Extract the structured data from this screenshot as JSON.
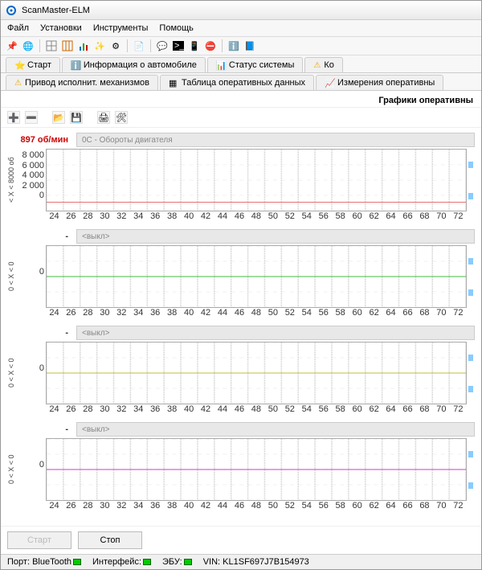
{
  "window": {
    "title": "ScanMaster-ELM"
  },
  "menu": {
    "items": [
      "Файл",
      "Установки",
      "Инструменты",
      "Помощь"
    ]
  },
  "tabs1": [
    {
      "icon": "fav",
      "label": "Старт"
    },
    {
      "icon": "info",
      "label": "Информация о автомобиле"
    },
    {
      "icon": "status",
      "label": "Статус системы"
    },
    {
      "icon": "warn",
      "label": "Ко"
    }
  ],
  "tabs2": [
    {
      "icon": "warn",
      "label": "Привод исполнит. механизмов"
    },
    {
      "icon": "table",
      "label": "Таблица оперативных данных"
    },
    {
      "icon": "chart",
      "label": "Измерения оперативны"
    }
  ],
  "page_title": "Графики оперативны",
  "xticks": [
    "24",
    "26",
    "28",
    "30",
    "32",
    "34",
    "36",
    "38",
    "40",
    "42",
    "44",
    "46",
    "48",
    "50",
    "52",
    "54",
    "56",
    "58",
    "60",
    "62",
    "64",
    "66",
    "68",
    "70",
    "72"
  ],
  "charts": [
    {
      "value": "897 об/мин",
      "value_color": "#c00",
      "selector": "0C - Обороты двигателя",
      "ylabel": "< X < 8000 об",
      "yticks": [
        "8 000",
        "6 000",
        "4 000",
        "2 000",
        "0"
      ],
      "line_color": "#d44",
      "line_y": 0.86,
      "background": "#ffffff",
      "grid_color": "#cccccc"
    },
    {
      "value": "-",
      "value_color": "#333",
      "selector": "<выкл>",
      "ylabel": "0 < X < 0",
      "yticks": [
        "",
        "0",
        ""
      ],
      "line_color": "#0a0",
      "line_y": 0.5,
      "background": "#ffffff",
      "grid_color": "#cccccc"
    },
    {
      "value": "-",
      "value_color": "#333",
      "selector": "<выкл>",
      "ylabel": "0 < X < 0",
      "yticks": [
        "",
        "0",
        ""
      ],
      "line_color": "#aa0",
      "line_y": 0.5,
      "background": "#ffffff",
      "grid_color": "#cccccc"
    },
    {
      "value": "-",
      "value_color": "#333",
      "selector": "<выкл>",
      "ylabel": "0 < X < 0",
      "yticks": [
        "",
        "0",
        ""
      ],
      "line_color": "#b0b",
      "line_y": 0.5,
      "background": "#ffffff",
      "grid_color": "#cccccc"
    }
  ],
  "buttons": {
    "start": "Старт",
    "stop": "Стоп"
  },
  "status": {
    "port_label": "Порт:",
    "port_value": "BlueTooth",
    "iface_label": "Интерфейс:",
    "ecu_label": "ЭБУ:",
    "vin_label": "VIN:",
    "vin_value": "KL1SF697J7B154973"
  }
}
